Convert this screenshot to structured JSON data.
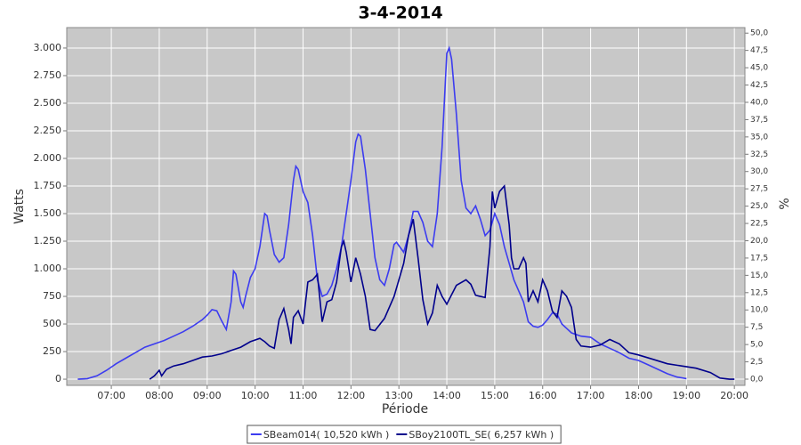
{
  "chart_data": {
    "type": "line",
    "title": "3-4-2014",
    "x_label": "Période",
    "y_label": "Watts",
    "y2_label": "%",
    "xlim": [
      6.07,
      20.22
    ],
    "xticks": [
      {
        "value": 7,
        "label": "07:00"
      },
      {
        "value": 8,
        "label": "08:00"
      },
      {
        "value": 9,
        "label": "09:00"
      },
      {
        "value": 10,
        "label": "10:00"
      },
      {
        "value": 11,
        "label": "11:00"
      },
      {
        "value": 12,
        "label": "12:00"
      },
      {
        "value": 13,
        "label": "13:00"
      },
      {
        "value": 14,
        "label": "14:00"
      },
      {
        "value": 15,
        "label": "15:00"
      },
      {
        "value": 16,
        "label": "16:00"
      },
      {
        "value": 17,
        "label": "17:00"
      },
      {
        "value": 18,
        "label": "18:00"
      },
      {
        "value": 19,
        "label": "19:00"
      },
      {
        "value": 20,
        "label": "20:00"
      }
    ],
    "ylim": [
      -56,
      3185
    ],
    "yticks": [
      0,
      250,
      500,
      750,
      {
        "value": 1000,
        "label": "1.000"
      },
      {
        "value": 1250,
        "label": "1.250"
      },
      {
        "value": 1500,
        "label": "1.500"
      },
      {
        "value": 1750,
        "label": "1.750"
      },
      {
        "value": 2000,
        "label": "2.000"
      },
      {
        "value": 2250,
        "label": "2.250"
      },
      {
        "value": 2500,
        "label": "2.500"
      },
      {
        "value": 2750,
        "label": "2.750"
      },
      {
        "value": 3000,
        "label": "3.000"
      }
    ],
    "y2lim": [
      -0.9,
      50.8
    ],
    "y2ticks": [
      {
        "value": 0,
        "label": "0,0"
      },
      {
        "value": 2.5,
        "label": "2,5"
      },
      {
        "value": 5,
        "label": "5,0"
      },
      {
        "value": 7.5,
        "label": "7,5"
      },
      {
        "value": 10,
        "label": "10,0"
      },
      {
        "value": 12.5,
        "label": "12,5"
      },
      {
        "value": 15,
        "label": "15,0"
      },
      {
        "value": 17.5,
        "label": "17,5"
      },
      {
        "value": 20,
        "label": "20,0"
      },
      {
        "value": 22.5,
        "label": "22,5"
      },
      {
        "value": 25,
        "label": "25,0"
      },
      {
        "value": 27.5,
        "label": "27,5"
      },
      {
        "value": 30,
        "label": "30,0"
      },
      {
        "value": 32.5,
        "label": "32,5"
      },
      {
        "value": 35,
        "label": "35,0"
      },
      {
        "value": 37.5,
        "label": "37,5"
      },
      {
        "value": 40,
        "label": "40,0"
      },
      {
        "value": 42.5,
        "label": "42,5"
      },
      {
        "value": 45,
        "label": "45,0"
      },
      {
        "value": 47.5,
        "label": "47,5"
      },
      {
        "value": 50,
        "label": "50,0"
      }
    ],
    "grid": true,
    "background": "#c8c8c8",
    "legend": "bottom",
    "series": [
      {
        "name": "SBeam014( 10,520 kWh )",
        "color": "#3c3cf0",
        "x": [
          6.3,
          6.5,
          6.7,
          6.9,
          7.1,
          7.3,
          7.5,
          7.7,
          7.9,
          8.1,
          8.3,
          8.5,
          8.7,
          8.9,
          9.0,
          9.1,
          9.2,
          9.3,
          9.4,
          9.5,
          9.55,
          9.6,
          9.7,
          9.75,
          9.8,
          9.9,
          10.0,
          10.1,
          10.2,
          10.25,
          10.3,
          10.4,
          10.5,
          10.6,
          10.7,
          10.8,
          10.85,
          10.9,
          11.0,
          11.1,
          11.2,
          11.3,
          11.4,
          11.5,
          11.6,
          11.7,
          11.8,
          11.9,
          12.0,
          12.1,
          12.15,
          12.2,
          12.3,
          12.4,
          12.5,
          12.6,
          12.7,
          12.8,
          12.9,
          12.95,
          13.0,
          13.1,
          13.2,
          13.3,
          13.4,
          13.5,
          13.6,
          13.7,
          13.8,
          13.9,
          14.0,
          14.05,
          14.1,
          14.2,
          14.3,
          14.4,
          14.5,
          14.6,
          14.7,
          14.8,
          14.9,
          15.0,
          15.1,
          15.2,
          15.3,
          15.4,
          15.5,
          15.6,
          15.7,
          15.8,
          15.9,
          16.0,
          16.1,
          16.2,
          16.3,
          16.4,
          16.6,
          16.8,
          17.0,
          17.2,
          17.4,
          17.6,
          17.8,
          18.0,
          18.2,
          18.4,
          18.6,
          18.8,
          19.0
        ],
        "values": [
          0,
          5,
          30,
          80,
          140,
          190,
          240,
          290,
          320,
          350,
          390,
          430,
          480,
          540,
          580,
          630,
          620,
          530,
          450,
          700,
          980,
          950,
          700,
          650,
          750,
          920,
          1000,
          1200,
          1500,
          1480,
          1350,
          1130,
          1060,
          1100,
          1400,
          1800,
          1930,
          1900,
          1700,
          1600,
          1300,
          900,
          750,
          770,
          850,
          1000,
          1200,
          1500,
          1800,
          2150,
          2220,
          2200,
          1900,
          1500,
          1100,
          900,
          850,
          1000,
          1220,
          1240,
          1210,
          1150,
          1300,
          1520,
          1520,
          1420,
          1250,
          1200,
          1500,
          2100,
          2950,
          3000,
          2900,
          2400,
          1800,
          1550,
          1500,
          1570,
          1450,
          1300,
          1350,
          1500,
          1400,
          1200,
          1050,
          900,
          800,
          700,
          520,
          480,
          470,
          490,
          540,
          600,
          590,
          500,
          420,
          390,
          380,
          320,
          280,
          240,
          190,
          170,
          130,
          90,
          50,
          20,
          5
        ]
      },
      {
        "name": "SBoy2100TL_SE( 6,257 kWh )",
        "color": "#00008c",
        "x": [
          7.8,
          7.9,
          8.0,
          8.05,
          8.15,
          8.3,
          8.5,
          8.7,
          8.9,
          9.1,
          9.3,
          9.5,
          9.7,
          9.9,
          10.1,
          10.2,
          10.3,
          10.4,
          10.5,
          10.6,
          10.7,
          10.75,
          10.8,
          10.9,
          11.0,
          11.1,
          11.2,
          11.3,
          11.4,
          11.5,
          11.6,
          11.7,
          11.8,
          11.85,
          11.9,
          12.0,
          12.1,
          12.2,
          12.3,
          12.4,
          12.5,
          12.7,
          12.9,
          13.1,
          13.2,
          13.3,
          13.4,
          13.5,
          13.6,
          13.7,
          13.8,
          13.9,
          14.0,
          14.2,
          14.4,
          14.5,
          14.6,
          14.8,
          14.9,
          14.95,
          15.0,
          15.1,
          15.2,
          15.3,
          15.35,
          15.4,
          15.5,
          15.6,
          15.65,
          15.7,
          15.8,
          15.9,
          16.0,
          16.1,
          16.2,
          16.3,
          16.4,
          16.5,
          16.6,
          16.7,
          16.8,
          17.0,
          17.2,
          17.4,
          17.6,
          17.8,
          18.0,
          18.3,
          18.6,
          18.9,
          19.2,
          19.5,
          19.7,
          19.9,
          20.0
        ],
        "values": [
          0,
          30,
          80,
          30,
          90,
          120,
          140,
          170,
          200,
          210,
          230,
          260,
          290,
          340,
          370,
          340,
          300,
          280,
          540,
          640,
          450,
          320,
          560,
          620,
          500,
          880,
          900,
          950,
          520,
          700,
          720,
          880,
          1200,
          1250,
          1150,
          880,
          1100,
          950,
          750,
          450,
          440,
          550,
          750,
          1050,
          1300,
          1450,
          1100,
          720,
          500,
          600,
          850,
          750,
          680,
          850,
          900,
          860,
          760,
          740,
          1200,
          1700,
          1550,
          1700,
          1750,
          1400,
          1100,
          1000,
          1000,
          1100,
          1050,
          700,
          800,
          700,
          900,
          800,
          620,
          560,
          800,
          750,
          650,
          360,
          300,
          290,
          310,
          360,
          320,
          240,
          220,
          180,
          140,
          120,
          100,
          60,
          10,
          0,
          0
        ]
      }
    ]
  }
}
